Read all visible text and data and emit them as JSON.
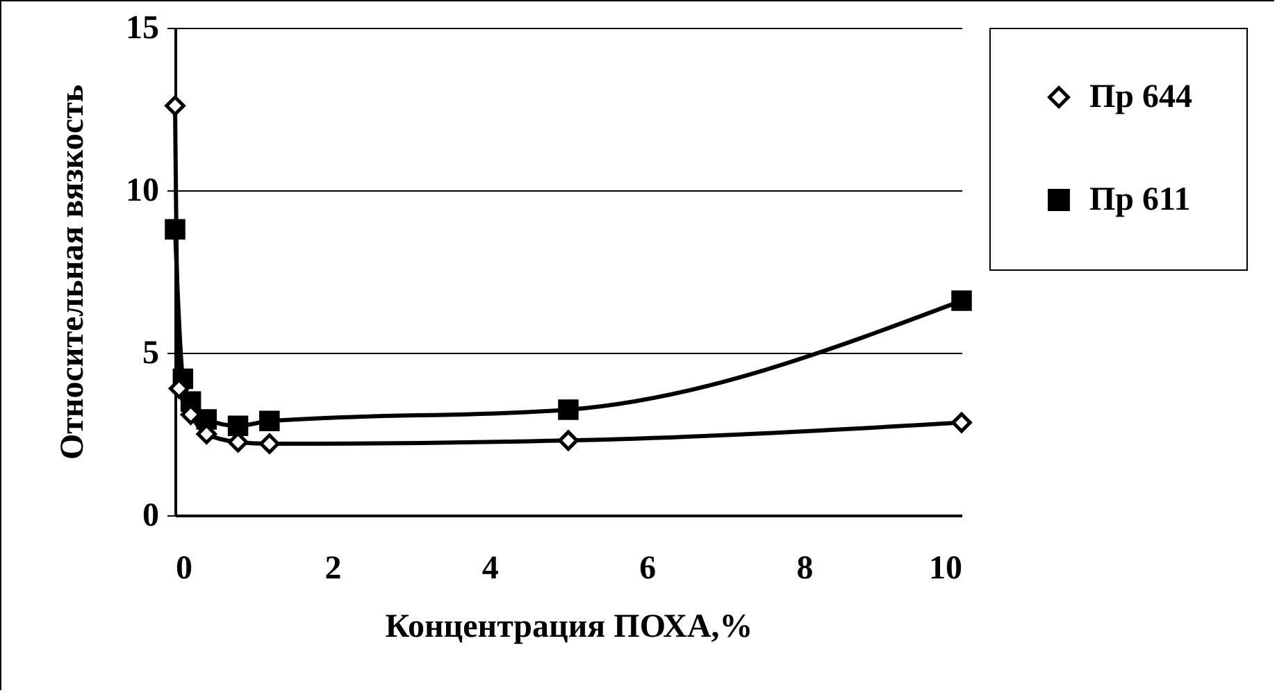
{
  "chart_data": {
    "type": "line",
    "xlabel": "Концентрация ПОХА,%",
    "ylabel": "Относительная вязкость",
    "xlim": [
      0,
      10
    ],
    "xticks": [
      0,
      2,
      4,
      6,
      8,
      10
    ],
    "ylim": [
      0,
      15
    ],
    "yticks": [
      0,
      5,
      10,
      15
    ],
    "grid": "y",
    "legend": "right",
    "series": [
      {
        "name": "Пр 644",
        "color": "#000000",
        "marker": "diamond",
        "x": [
          0,
          0.05,
          0.2,
          0.4,
          0.8,
          1.2,
          5,
          10
        ],
        "values": [
          12.6,
          3.9,
          3.1,
          2.5,
          2.25,
          2.2,
          2.3,
          2.85
        ]
      },
      {
        "name": "Пр 611",
        "color": "#000000",
        "marker": "square",
        "x": [
          0,
          0.1,
          0.2,
          0.4,
          0.8,
          1.2,
          5,
          10
        ],
        "values": [
          8.8,
          4.2,
          3.5,
          2.95,
          2.75,
          2.9,
          3.25,
          6.6
        ]
      }
    ]
  }
}
